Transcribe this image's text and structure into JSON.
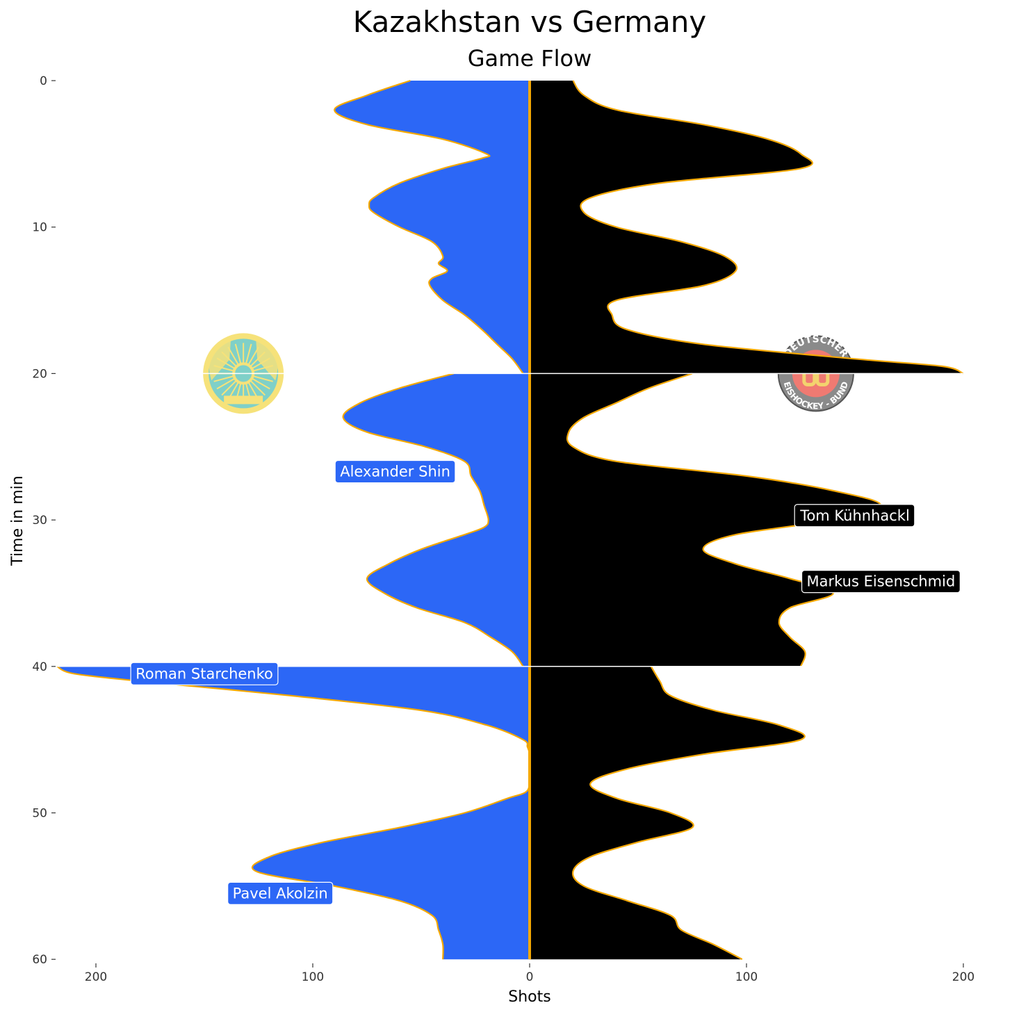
{
  "chart_data": {
    "type": "area",
    "title": "Kazakhstan vs Germany",
    "subtitle": "Game Flow",
    "xlabel": "Shots",
    "ylabel": "Time in min",
    "xlim": [
      -220,
      205
    ],
    "ylim": [
      0,
      60
    ],
    "x_ticks": [
      {
        "value": -200,
        "label": "200"
      },
      {
        "value": -100,
        "label": "100"
      },
      {
        "value": 0,
        "label": "0"
      },
      {
        "value": 100,
        "label": "100"
      },
      {
        "value": 200,
        "label": "200"
      }
    ],
    "y_ticks": [
      {
        "value": 0,
        "label": "0"
      },
      {
        "value": 10,
        "label": "10"
      },
      {
        "value": 20,
        "label": "20"
      },
      {
        "value": 30,
        "label": "30"
      },
      {
        "value": 40,
        "label": "40"
      },
      {
        "value": 50,
        "label": "50"
      },
      {
        "value": 60,
        "label": "60"
      }
    ],
    "period_breaks": [
      20,
      40
    ],
    "colors": {
      "kazakhstan": "#2c67f6",
      "germany": "#000000",
      "outline": "#f5a800",
      "period_line": "#ffffff"
    },
    "series": [
      {
        "team": "kazakhstan",
        "periods": [
          {
            "t": [
              0,
              1,
              2,
              3,
              4,
              5,
              5.3,
              6,
              7,
              8,
              8.5,
              9,
              10,
              11,
              12,
              12.5,
              13,
              13.5,
              14,
              15,
              16,
              17,
              18,
              19,
              20
            ],
            "x": [
              -55,
              -75,
              -90,
              -75,
              -40,
              -20,
              -22,
              -40,
              -60,
              -72,
              -74,
              -72,
              -60,
              -45,
              -40,
              -42,
              -38,
              -45,
              -46,
              -40,
              -30,
              -22,
              -15,
              -8,
              -3
            ]
          },
          {
            "t": [
              20,
              21,
              22,
              23,
              24,
              25,
              26,
              27,
              28,
              29,
              30,
              30.5,
              31,
              32,
              33,
              34,
              35,
              36,
              37,
              38,
              39,
              40
            ],
            "x": [
              -35,
              -60,
              -78,
              -86,
              -75,
              -48,
              -30,
              -27,
              -23,
              -21,
              -19,
              -21,
              -30,
              -50,
              -65,
              -75,
              -67,
              -52,
              -30,
              -18,
              -8,
              -3
            ]
          },
          {
            "t": [
              40,
              40.5,
              41,
              42,
              43,
              44,
              45,
              45.5,
              46,
              47,
              48,
              48.6,
              49,
              50,
              51,
              52,
              53,
              54,
              55,
              56,
              57,
              58,
              59,
              60
            ],
            "x": [
              -218,
              -210,
              -180,
              -110,
              -50,
              -20,
              -3,
              -1,
              0,
              0,
              0,
              -2,
              -10,
              -30,
              -60,
              -95,
              -120,
              -126,
              -90,
              -60,
              -45,
              -42,
              -40,
              -40
            ]
          }
        ]
      },
      {
        "team": "germany",
        "periods": [
          {
            "t": [
              0,
              1,
              2,
              3,
              4,
              5,
              6,
              7,
              8,
              9,
              10,
              11,
              12,
              13,
              14,
              15,
              16,
              17,
              18,
              19,
              19.5,
              20
            ],
            "x": [
              20,
              25,
              40,
              80,
              110,
              125,
              125,
              60,
              28,
              25,
              40,
              70,
              90,
              95,
              80,
              40,
              38,
              45,
              80,
              150,
              190,
              200
            ]
          },
          {
            "t": [
              20,
              21,
              22,
              23,
              24,
              25,
              26,
              27,
              28,
              29,
              30,
              31,
              32,
              33,
              34,
              35,
              36,
              37,
              38,
              39,
              40
            ],
            "x": [
              75,
              55,
              40,
              25,
              18,
              20,
              40,
              100,
              140,
              162,
              140,
              95,
              80,
              95,
              120,
              140,
              120,
              115,
              120,
              127,
              125
            ]
          },
          {
            "t": [
              40,
              41,
              42,
              43,
              44,
              45,
              46,
              47,
              48,
              49,
              50,
              51,
              52,
              53,
              54,
              55,
              56,
              57,
              58,
              59,
              60
            ],
            "x": [
              56,
              60,
              65,
              85,
              115,
              125,
              80,
              45,
              28,
              40,
              65,
              75,
              50,
              28,
              20,
              25,
              45,
              65,
              70,
              85,
              98
            ]
          }
        ]
      }
    ],
    "labels": [
      {
        "text": "Alexander Shin",
        "team": "kazakhstan",
        "x": -62,
        "t": 26.7
      },
      {
        "text": "Tom Kühnhackl",
        "team": "germany",
        "x": 150,
        "t": 29.7
      },
      {
        "text": "Markus Eisenschmid",
        "team": "germany",
        "x": 162,
        "t": 34.2
      },
      {
        "text": "Roman Starchenko",
        "team": "kazakhstan",
        "x": -150,
        "t": 40.5
      },
      {
        "text": "Pavel Akolzin",
        "team": "kazakhstan",
        "x": -115,
        "t": 55.5
      }
    ],
    "logos": [
      {
        "team": "kazakhstan",
        "icon": "kazakhstan-emblem-icon",
        "x": -132,
        "t": 20,
        "colors": {
          "fill": "#7fd0c8",
          "accent": "#f6e27a"
        }
      },
      {
        "team": "germany",
        "icon": "deb-logo-icon",
        "x": 132,
        "t": 20,
        "lettering": [
          "DEUTSCHER",
          "EISHOCKEY - BUND"
        ],
        "colors": {
          "ring": "#8a8a8a",
          "center": "#f07a72",
          "text": "#ffffff"
        }
      }
    ]
  }
}
